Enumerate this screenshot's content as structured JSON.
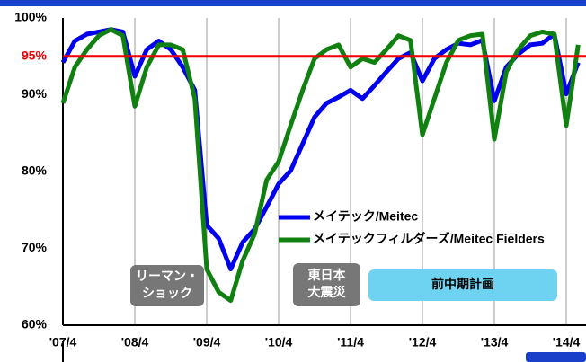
{
  "chart_data": {
    "type": "line",
    "categories": [
      "'07/4",
      null,
      null,
      null,
      null,
      null,
      "'08/4",
      null,
      null,
      null,
      null,
      null,
      "'09/4",
      null,
      null,
      null,
      null,
      null,
      "'10/4",
      null,
      null,
      null,
      null,
      null,
      "'11/4",
      null,
      null,
      null,
      null,
      null,
      "'12/4",
      null,
      null,
      null,
      null,
      null,
      "'13/4",
      null,
      null,
      null,
      null,
      null,
      "'14/4",
      null
    ],
    "series": [
      {
        "name": "メイテック/Meitec",
        "color": "#0000ee",
        "values": [
          94.2,
          97,
          97.9,
          98.2,
          98.5,
          98.2,
          92.4,
          95.9,
          97,
          95.9,
          93.6,
          90.6,
          73,
          71.3,
          67.3,
          70.8,
          72.5,
          75.4,
          78.4,
          80.1,
          83.6,
          87.1,
          88.9,
          89.7,
          90.6,
          89.5,
          91.2,
          93,
          94.7,
          95.5,
          91.8,
          94.7,
          95.9,
          96.7,
          96.5,
          97.1,
          89.2,
          93.6,
          95.3,
          96.5,
          96.7,
          97.9,
          90.1,
          94.2
        ]
      },
      {
        "name": "メイテックフィルダーズ/Meitec Fielders",
        "color": "#108010",
        "values": [
          88.9,
          93.6,
          95.9,
          97.7,
          98.5,
          97.7,
          88.5,
          93.6,
          96.5,
          96.5,
          95.9,
          89.5,
          67.3,
          64.3,
          63.2,
          68.4,
          71.9,
          78.9,
          81.3,
          86,
          90.6,
          94.7,
          95.9,
          96.5,
          93.6,
          94.7,
          94.2,
          95.9,
          97.7,
          97.1,
          84.8,
          89.5,
          94.2,
          97.1,
          97.7,
          97.9,
          84.2,
          93,
          95.9,
          97.7,
          98.2,
          97.9,
          86,
          96.5
        ]
      }
    ],
    "ylim": [
      60,
      100
    ],
    "yticks": [
      {
        "value": 60,
        "label": "60%"
      },
      {
        "value": 70,
        "label": "70%"
      },
      {
        "value": 80,
        "label": "80%"
      },
      {
        "value": 90,
        "label": "90%"
      },
      {
        "value": 95,
        "label": "95%"
      },
      {
        "value": 100,
        "label": "100%"
      }
    ],
    "reference_line": {
      "value": 95,
      "color": "#ee0000"
    },
    "grid": true,
    "annotations": [
      {
        "lines": [
          "リーマン・",
          "ショック"
        ]
      },
      {
        "lines": [
          "東日本",
          "大震災"
        ]
      },
      {
        "lines": [
          "前中期計画"
        ]
      }
    ]
  }
}
